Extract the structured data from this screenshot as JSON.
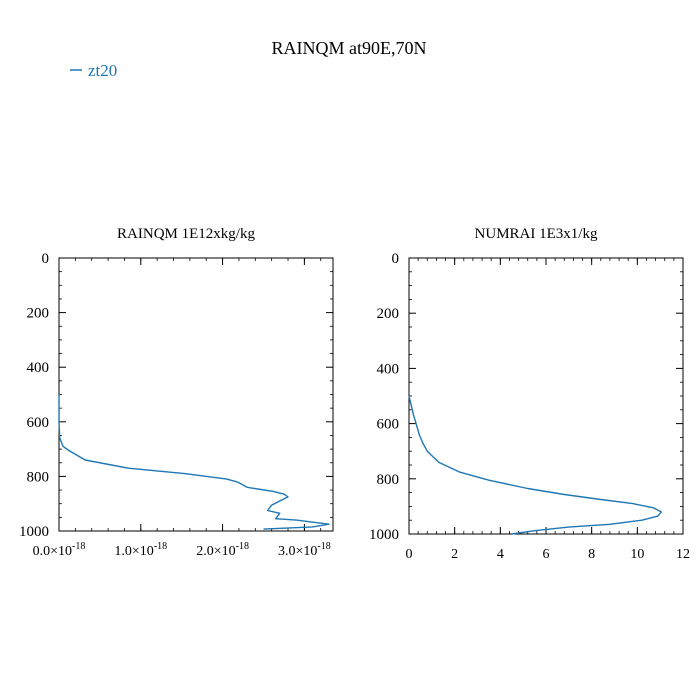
{
  "figure": {
    "title": "RAINQM at90E,70N",
    "legend": {
      "label": "zt20",
      "color": "#1f77b4",
      "placement": "top-left"
    }
  },
  "chart_data": [
    {
      "type": "line",
      "title": "RAINQM  1E12xkg/kg",
      "xlabel": "",
      "ylabel": "",
      "xlim": [
        0,
        3.35e-18
      ],
      "ylim": [
        1000,
        0
      ],
      "y_inverted": true,
      "xticks": [
        0,
        1e-18,
        2e-18,
        3e-18
      ],
      "xtick_labels": [
        {
          "mant": "0.0",
          "exp": "-18"
        },
        {
          "mant": "1.0",
          "exp": "-18"
        },
        {
          "mant": "2.0",
          "exp": "-18"
        },
        {
          "mant": "3.0",
          "exp": "-18"
        }
      ],
      "yticks": [
        0,
        200,
        400,
        600,
        800,
        1000
      ],
      "ytick_labels": [
        "0",
        "200",
        "400",
        "600",
        "800",
        "1000"
      ],
      "grid": false,
      "series": [
        {
          "name": "zt20",
          "color": "#1f77b4",
          "x": [
            0,
            0,
            1e-20,
            5e-20,
            1.2e-19,
            3.2e-19,
            8.5e-19,
            1.55e-18,
            2.05e-18,
            2.18e-18,
            2.3e-18,
            2.62e-18,
            2.75e-18,
            2.8e-18,
            2.7e-18,
            2.6e-18,
            2.55e-18,
            2.7e-18,
            2.65e-18,
            2.9e-18,
            3.3e-18,
            3.1e-18,
            2.5e-18
          ],
          "y": [
            500,
            600,
            660,
            690,
            705,
            740,
            770,
            790,
            810,
            820,
            840,
            855,
            865,
            875,
            890,
            905,
            925,
            935,
            955,
            960,
            975,
            985,
            993
          ]
        }
      ]
    },
    {
      "type": "line",
      "title": "NUMRAI  1E3x1/kg",
      "xlabel": "",
      "ylabel": "",
      "xlim": [
        0,
        12
      ],
      "ylim": [
        1000,
        0
      ],
      "y_inverted": true,
      "xticks": [
        0,
        2,
        4,
        6,
        8,
        10,
        12
      ],
      "xtick_labels": [
        "0",
        "2",
        "4",
        "6",
        "8",
        "10",
        "12"
      ],
      "yticks": [
        0,
        200,
        400,
        600,
        800,
        1000
      ],
      "ytick_labels": [
        "0",
        "200",
        "400",
        "600",
        "800",
        "1000"
      ],
      "grid": false,
      "series": [
        {
          "name": "zt20",
          "color": "#1f77b4",
          "x": [
            0,
            0.2,
            0.45,
            0.6,
            0.8,
            1.3,
            2.2,
            3.5,
            5.2,
            6.8,
            8.4,
            9.8,
            10.7,
            11.05,
            10.9,
            10.2,
            8.8,
            7.0,
            5.5,
            4.5
          ],
          "y": [
            500,
            570,
            640,
            670,
            700,
            740,
            775,
            805,
            835,
            857,
            875,
            890,
            905,
            920,
            935,
            950,
            965,
            975,
            988,
            1000
          ]
        }
      ]
    }
  ]
}
